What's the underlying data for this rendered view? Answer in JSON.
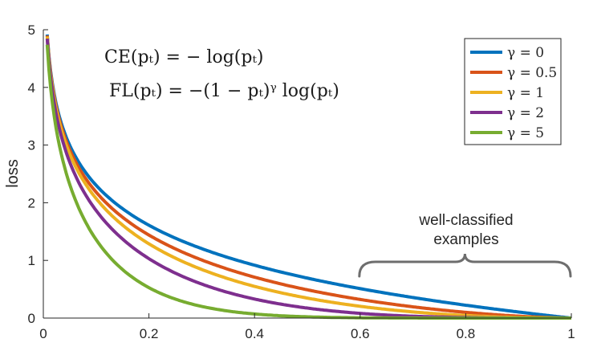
{
  "chart_data": {
    "type": "line",
    "title": "",
    "xlabel": "",
    "ylabel": "loss",
    "xlim": [
      0,
      1
    ],
    "ylim": [
      0,
      5
    ],
    "xticks": [
      "0",
      "0.2",
      "0.4",
      "0.6",
      "0.8",
      "1"
    ],
    "yticks": [
      "0",
      "1",
      "2",
      "3",
      "4",
      "5"
    ],
    "grid": false,
    "legend_position": "top-right",
    "formulas": [
      "CE(pₜ) = − log(pₜ)",
      "FL(pₜ) = −(1 − pₜ)ᵞ log(pₜ)"
    ],
    "annotation": {
      "lines": [
        "well-classified",
        "examples"
      ],
      "span": [
        0.6,
        1.0
      ]
    },
    "x": [
      0.007,
      0.01,
      0.02,
      0.03,
      0.05,
      0.07,
      0.1,
      0.15,
      0.2,
      0.25,
      0.3,
      0.4,
      0.5,
      0.6,
      0.7,
      0.8,
      0.9,
      1.0
    ],
    "series": [
      {
        "name": "γ = 0",
        "gamma": 0,
        "color": "#0072BD",
        "values": [
          4.96,
          4.61,
          3.91,
          3.51,
          3.0,
          2.66,
          2.3,
          1.9,
          1.61,
          1.39,
          1.2,
          0.92,
          0.69,
          0.51,
          0.36,
          0.22,
          0.11,
          0
        ]
      },
      {
        "name": "γ = 0.5",
        "gamma": 0.5,
        "color": "#D95319",
        "values": [
          4.94,
          4.58,
          3.87,
          3.46,
          2.92,
          2.56,
          2.18,
          1.75,
          1.44,
          1.2,
          1.0,
          0.71,
          0.49,
          0.32,
          0.2,
          0.1,
          0.03,
          0
        ]
      },
      {
        "name": "γ = 1",
        "gamma": 1,
        "color": "#EDB120",
        "values": [
          4.93,
          4.56,
          3.83,
          3.4,
          2.85,
          2.47,
          2.07,
          1.61,
          1.29,
          1.04,
          0.84,
          0.55,
          0.35,
          0.2,
          0.11,
          0.04,
          0.01,
          0
        ]
      },
      {
        "name": "γ = 2",
        "gamma": 2,
        "color": "#7E2F8E",
        "values": [
          4.89,
          4.51,
          3.76,
          3.3,
          2.71,
          2.3,
          1.87,
          1.37,
          1.03,
          0.78,
          0.59,
          0.33,
          0.17,
          0.08,
          0.03,
          0.01,
          0.0,
          0
        ]
      },
      {
        "name": "γ = 5",
        "gamma": 5,
        "color": "#77AC30",
        "values": [
          4.79,
          4.39,
          3.54,
          3.02,
          2.32,
          1.84,
          1.36,
          0.84,
          0.53,
          0.33,
          0.2,
          0.07,
          0.02,
          0.01,
          0.0,
          0.0,
          0.0,
          0
        ]
      }
    ]
  }
}
